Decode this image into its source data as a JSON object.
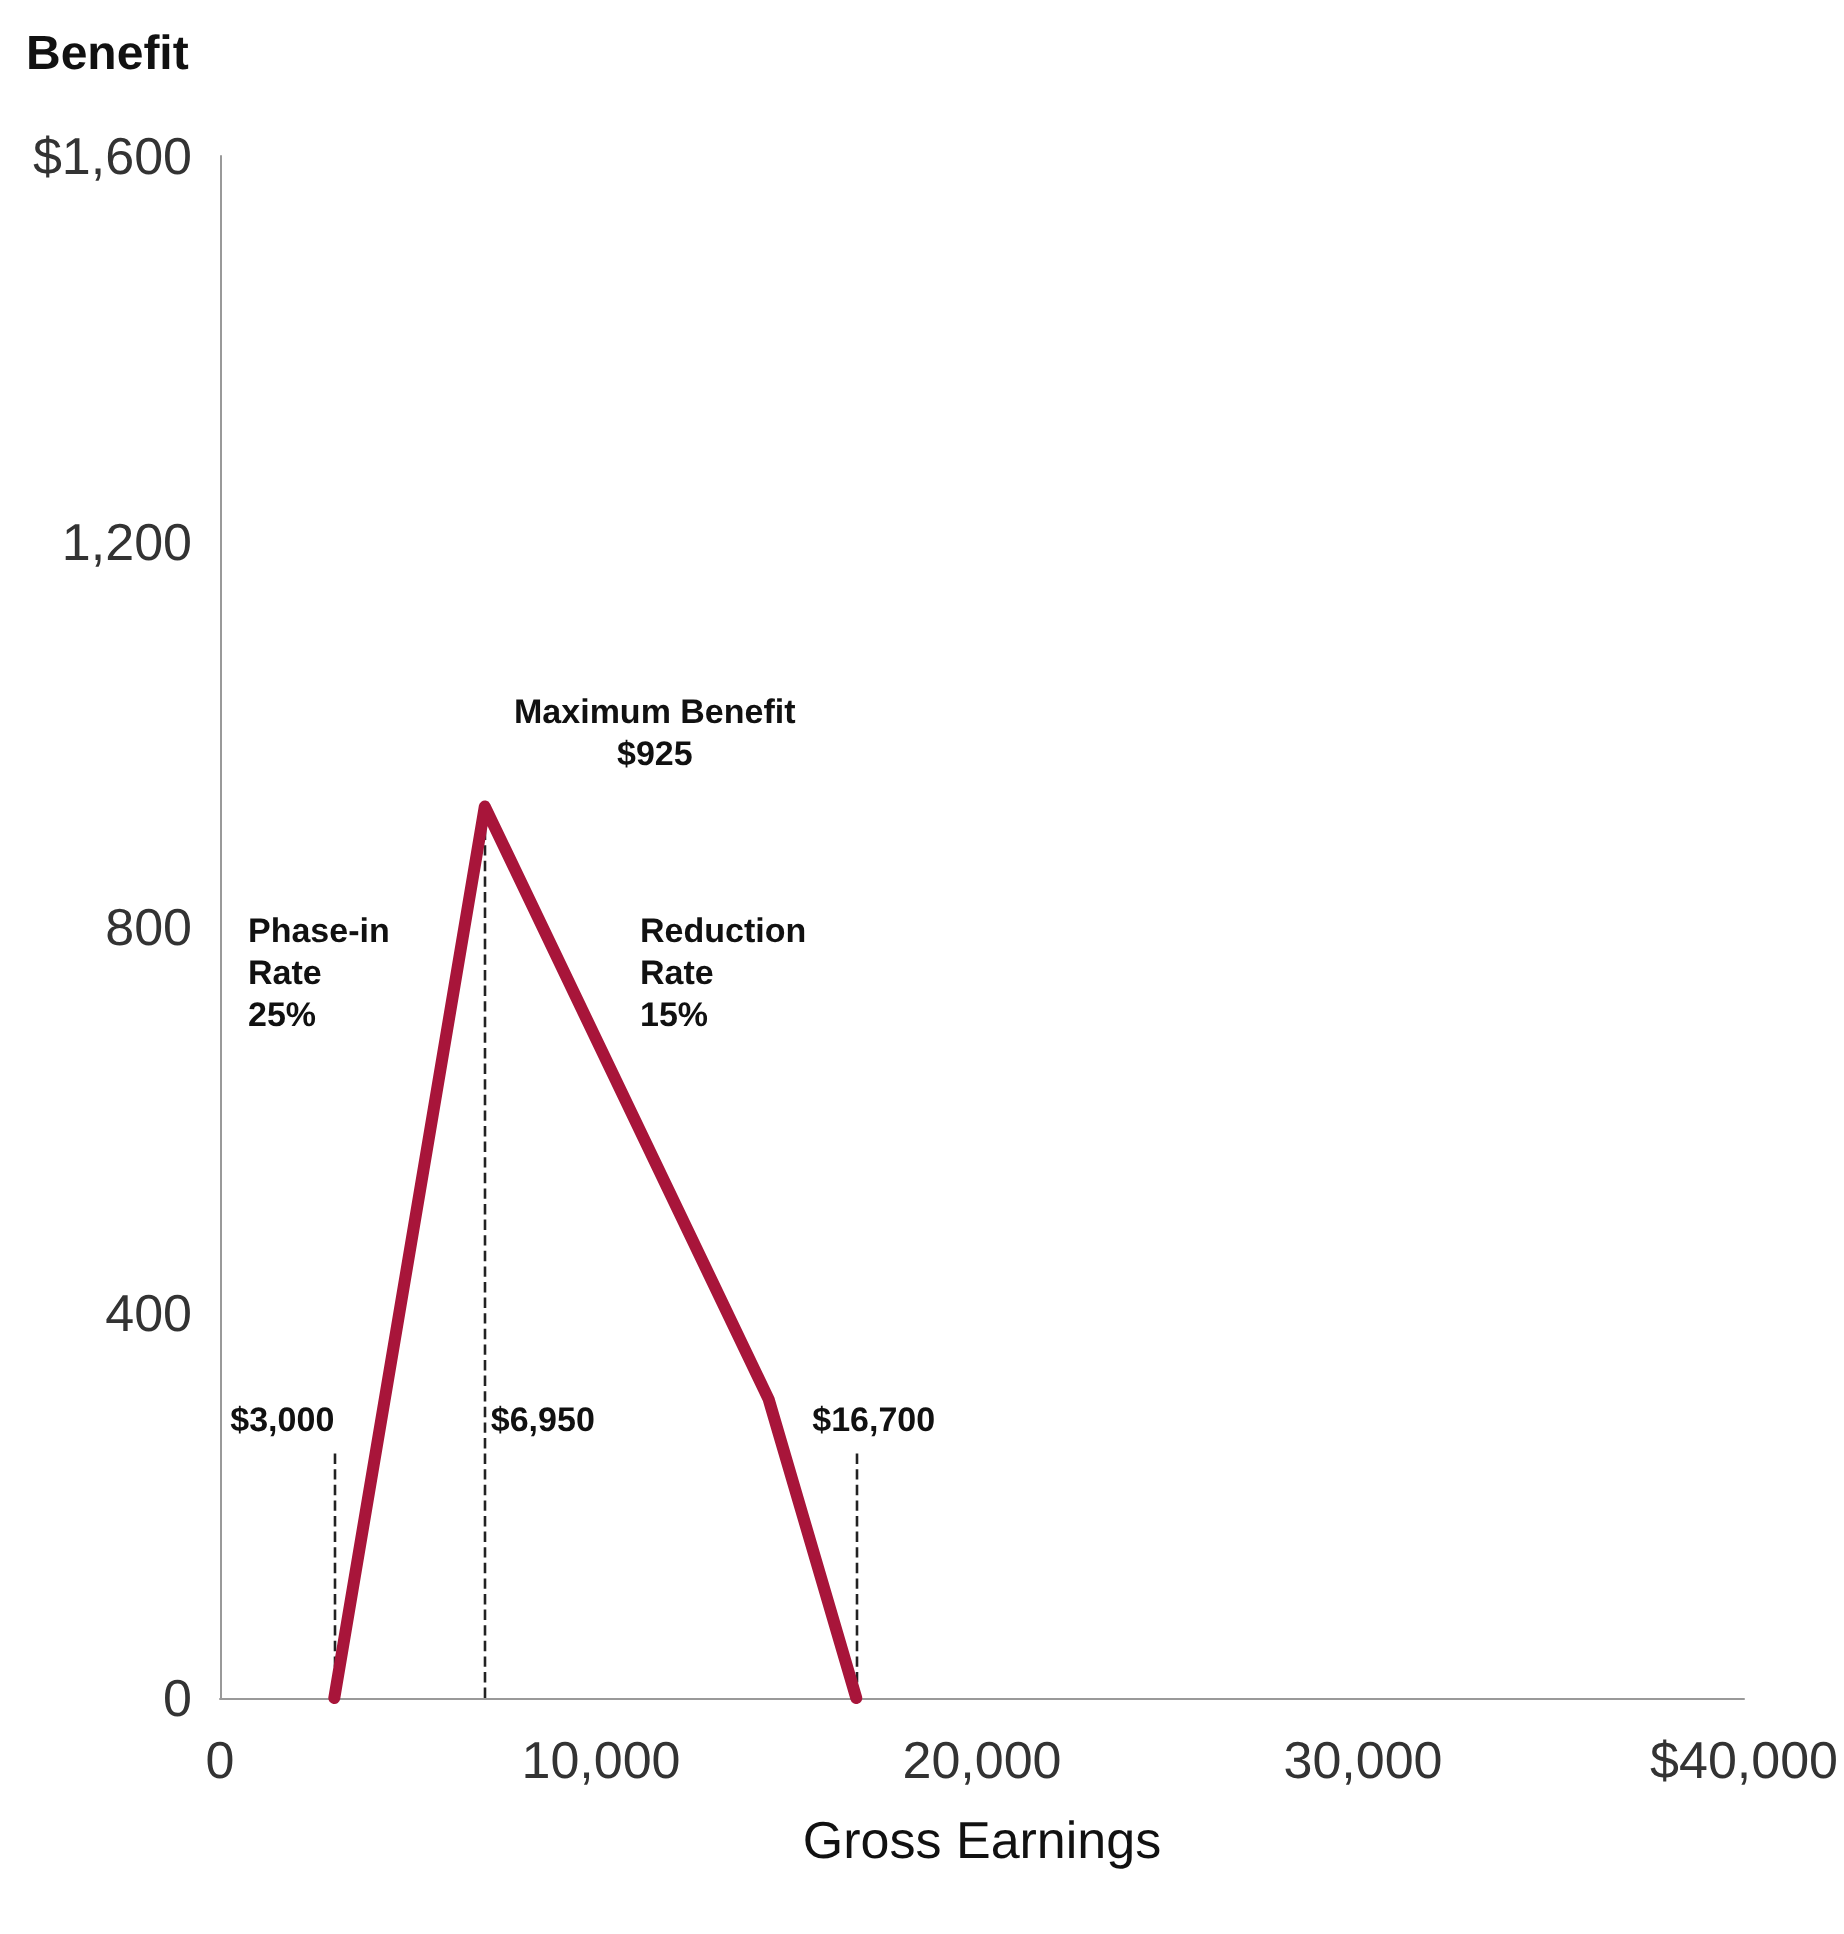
{
  "chart_data": {
    "type": "line",
    "ylabel": "Benefit",
    "xlabel": "Gross Earnings",
    "x": [
      3000,
      6950,
      14400,
      16700
    ],
    "series": [
      {
        "color": "#a8153a",
        "values": [
          0,
          925,
          310,
          0
        ]
      }
    ],
    "xlim": [
      0,
      40000
    ],
    "xticks": [
      0,
      {
        "value": 10000,
        "label": "10,000"
      },
      {
        "value": 20000,
        "label": "20,000"
      },
      {
        "value": 30000,
        "label": "30,000"
      },
      {
        "value": 40000,
        "label": "$40,000"
      }
    ],
    "ylim": [
      0,
      1600
    ],
    "yticks": [
      0,
      400,
      800,
      {
        "value": 1200,
        "label": "1,200"
      },
      {
        "value": 1600,
        "label": "$1,600"
      }
    ],
    "ref_lines": [
      {
        "axis": "x",
        "value": 3000,
        "label": "$3,000",
        "line_style": "dashed"
      },
      {
        "axis": "x",
        "value": 6950,
        "label": "$6,950",
        "line_style": "dashed"
      },
      {
        "axis": "x",
        "value": 16700,
        "label": "$16,700",
        "line_style": "dashed"
      }
    ],
    "annotations": [
      {
        "text": "Maximum Benefit\n$925",
        "x": 6950,
        "y": 925
      },
      "Phase-in\nRate\n25%",
      "Reduction\nRate\n15%"
    ],
    "grid": false,
    "marker": "none",
    "line_style": "solid"
  }
}
